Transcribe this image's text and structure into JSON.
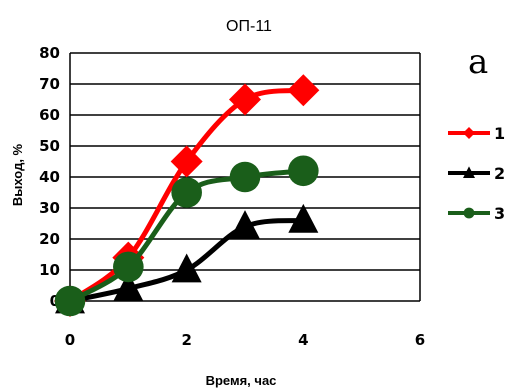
{
  "chart_data": {
    "type": "line",
    "title": "ОП-11",
    "panel_label": "a",
    "xlabel": "Время, час",
    "ylabel": "Выход, %",
    "xlim": [
      0,
      6
    ],
    "ylim": [
      0,
      80
    ],
    "x_ticks": [
      0,
      2,
      4,
      6
    ],
    "y_ticks": [
      0,
      10,
      20,
      30,
      40,
      50,
      60,
      70,
      80
    ],
    "grid": true,
    "legend_position": "right",
    "series": [
      {
        "name": "1",
        "color": "#ff0000",
        "marker": "diamond",
        "x": [
          0,
          1,
          2,
          3,
          4
        ],
        "y": [
          0,
          14,
          45,
          65,
          68
        ]
      },
      {
        "name": "2",
        "color": "#000000",
        "marker": "triangle",
        "x": [
          0,
          1,
          2,
          3,
          4
        ],
        "y": [
          0,
          4,
          10,
          24,
          26
        ]
      },
      {
        "name": "3",
        "color": "#1a5e1a",
        "marker": "circle",
        "x": [
          0,
          1,
          2,
          3,
          4
        ],
        "y": [
          0,
          11,
          35,
          40,
          42
        ]
      }
    ]
  }
}
